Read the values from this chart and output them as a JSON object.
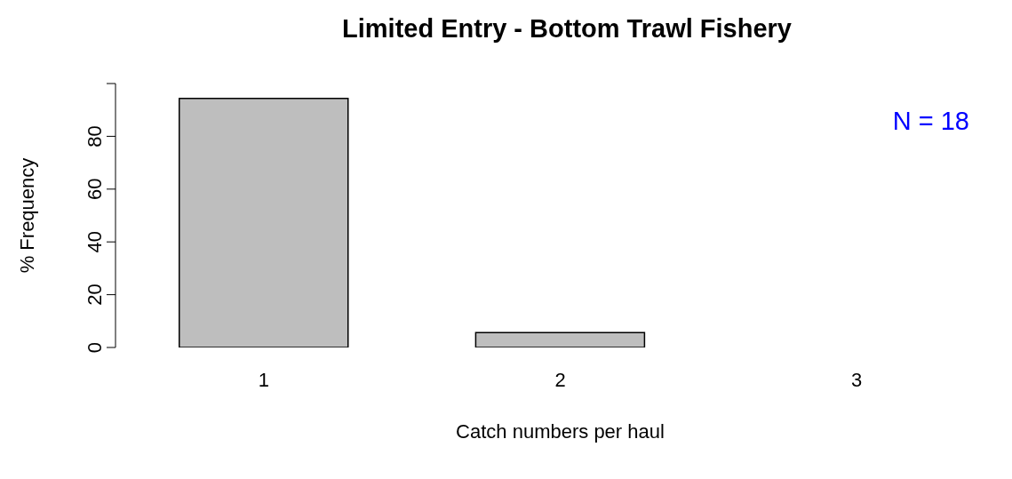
{
  "chart_data": {
    "type": "bar",
    "title": "Limited Entry - Bottom Trawl Fishery",
    "xlabel": "Catch numbers per haul",
    "ylabel": "% Frequency",
    "categories": [
      "1",
      "2",
      "3"
    ],
    "values": [
      94.4,
      5.6,
      0
    ],
    "color": "#bebebe",
    "ylim": [
      0,
      100
    ],
    "yticks": [
      0,
      20,
      40,
      60,
      80,
      {
        "value": 100,
        "label": null
      }
    ],
    "annotations": [
      "N = 18"
    ]
  }
}
